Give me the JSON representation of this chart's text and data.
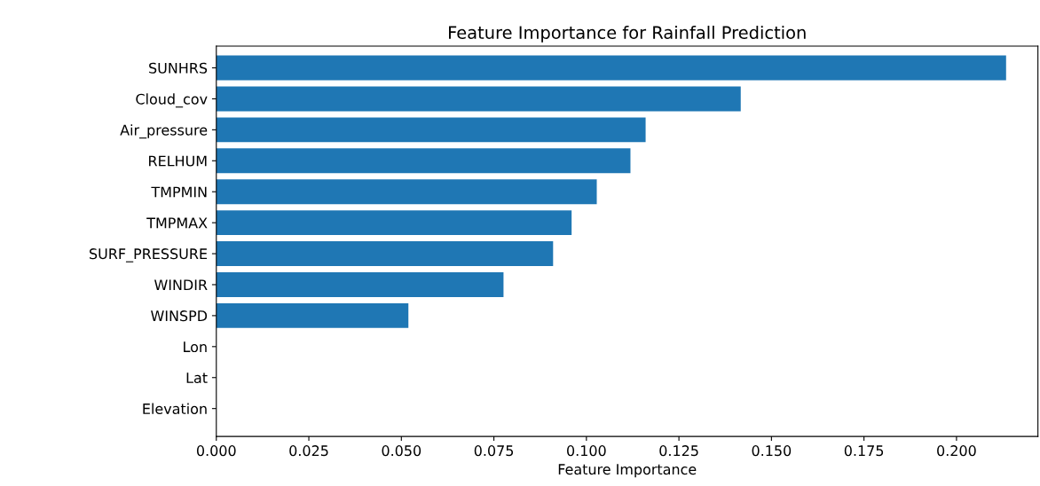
{
  "chart_data": {
    "type": "bar",
    "orientation": "horizontal",
    "title": "Feature Importance for Rainfall Prediction",
    "xlabel": "Feature Importance",
    "categories": [
      "SUNHRS",
      "Cloud_cov",
      "Air_pressure",
      "RELHUM",
      "TMPMIN",
      "TMPMAX",
      "SURF_PRESSURE",
      "WINDIR",
      "WINSPD",
      "Lon",
      "Lat",
      "Elevation"
    ],
    "values": [
      0.2134,
      0.1417,
      0.116,
      0.1119,
      0.1028,
      0.096,
      0.091,
      0.0776,
      0.0519,
      0,
      0,
      0
    ],
    "color": "#1f77b4",
    "xlim": [
      0,
      0.222
    ],
    "xticks": [
      {
        "value": 0,
        "label": "0.000"
      },
      {
        "value": 0.025,
        "label": "0.025"
      },
      {
        "value": 0.05,
        "label": "0.050"
      },
      {
        "value": 0.075,
        "label": "0.075"
      },
      {
        "value": 0.1,
        "label": "0.100"
      },
      {
        "value": 0.125,
        "label": "0.125"
      },
      {
        "value": 0.15,
        "label": "0.150"
      },
      {
        "value": 0.175,
        "label": "0.175"
      },
      {
        "value": 0.2,
        "label": "0.200"
      }
    ],
    "grid": false
  }
}
